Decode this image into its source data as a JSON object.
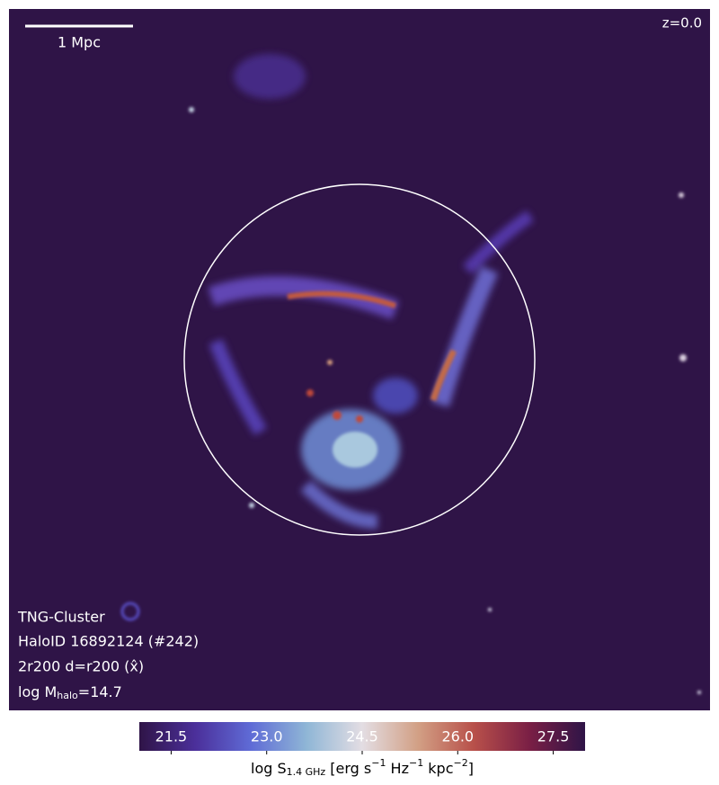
{
  "scale_bar_label": "1 Mpc",
  "redshift": "z=0.0",
  "info": [
    "TNG-Cluster",
    "HaloID 16892124 (#242)",
    "2r200 d=r200 (x̂)"
  ],
  "mass_label": {
    "text": "log M",
    "subscript": "halo",
    "suffix": "=14.7"
  },
  "chart_data": {
    "type": "colorbar",
    "xlim": [
      21,
      28
    ],
    "xticks": [
      21.5,
      {
        "value": 23,
        "label": "23.0"
      },
      24.5,
      {
        "value": 26,
        "label": "26.0"
      },
      27.5
    ],
    "colors": [
      "#2f1447",
      "#4b2f9a",
      "#5f6bd6",
      "#8fb6d6",
      "#e3dde3",
      "#d2a085",
      "#b8504a",
      "#7a1f45",
      "#2f1447"
    ],
    "label_parts": [
      {
        "text": "log S"
      },
      {
        "sub": "1.4 GHz"
      },
      {
        "text": " [erg s"
      },
      {
        "sup": "−1"
      },
      {
        "text": " Hz"
      },
      {
        "sup": "−1"
      },
      {
        "text": " kpc"
      },
      {
        "sup": "−2"
      },
      {
        "text": "]"
      }
    ]
  }
}
